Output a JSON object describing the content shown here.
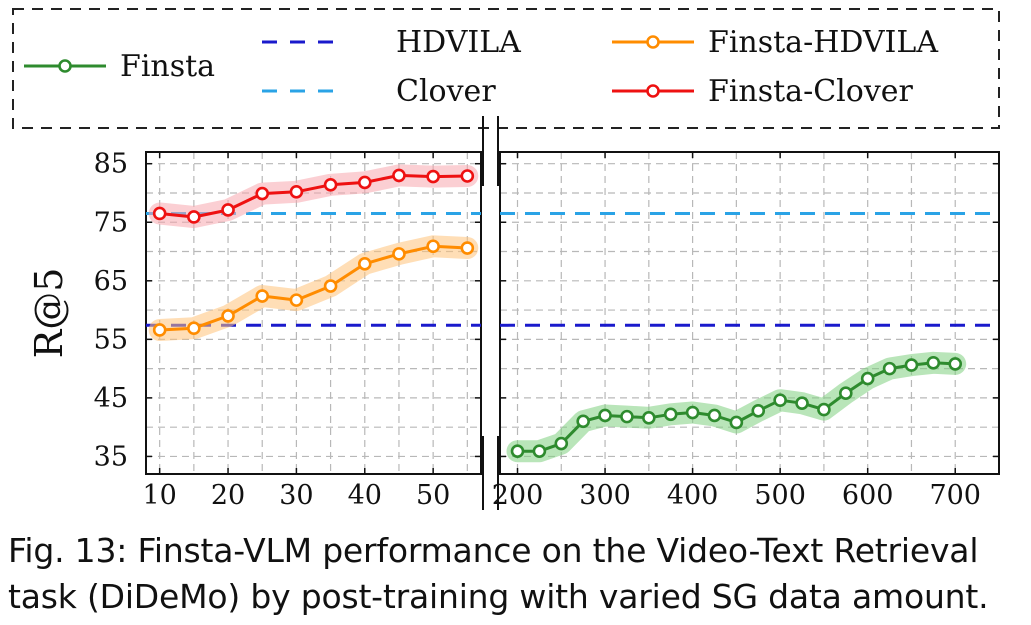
{
  "chart_data": {
    "type": "line",
    "ylabel": "R@5",
    "ylim": [
      32,
      87
    ],
    "yticks": [
      35,
      45,
      55,
      65,
      75,
      85
    ],
    "left_panel": {
      "xlim": [
        8,
        57
      ],
      "xticks": [
        10,
        20,
        30,
        40,
        50
      ],
      "minor_grid": [
        15,
        25,
        35,
        45,
        55
      ]
    },
    "right_panel": {
      "xlim": [
        180,
        750
      ],
      "xticks": [
        200,
        300,
        400,
        500,
        600,
        700
      ],
      "minor_grid": [
        250,
        350,
        450,
        550,
        650
      ]
    },
    "baselines": [
      {
        "name": "HDVILA",
        "value": 57.4,
        "color": "#1a1acc"
      },
      {
        "name": "Clover",
        "value": 76.5,
        "color": "#2aa3e6"
      }
    ],
    "series": [
      {
        "name": "Finsta",
        "panel": "right",
        "color": "#2e8b2e",
        "band_color": "#7fd07f",
        "x": [
          200,
          225,
          250,
          275,
          300,
          325,
          350,
          375,
          400,
          425,
          450,
          475,
          500,
          525,
          550,
          575,
          600,
          625,
          650,
          675,
          700
        ],
        "values": [
          35.9,
          35.9,
          37.2,
          41.0,
          42.0,
          41.8,
          41.6,
          42.2,
          42.5,
          42.0,
          40.8,
          42.8,
          44.6,
          44.1,
          43.0,
          45.8,
          48.3,
          50.0,
          50.6,
          51.0,
          50.8
        ]
      },
      {
        "name": "Finsta-HDVILA",
        "panel": "left",
        "color": "#ff8c00",
        "band_color": "#ffc27a",
        "x": [
          10,
          15,
          20,
          25,
          30,
          35,
          40,
          45,
          50,
          55
        ],
        "values": [
          56.6,
          56.9,
          59.0,
          62.4,
          61.7,
          64.1,
          67.9,
          69.6,
          70.9,
          70.6
        ]
      },
      {
        "name": "Finsta-Clover",
        "panel": "left",
        "color": "#ee1111",
        "band_color": "#f7a8ae",
        "x": [
          10,
          15,
          20,
          25,
          30,
          35,
          40,
          45,
          50,
          55
        ],
        "values": [
          76.5,
          75.9,
          77.1,
          79.9,
          80.2,
          81.4,
          81.8,
          83.0,
          82.8,
          82.9
        ]
      }
    ],
    "legend": {
      "placement": "top",
      "entries": [
        "Finsta",
        "HDVILA",
        "Finsta-HDVILA",
        "Clover",
        "Finsta-Clover"
      ]
    }
  },
  "caption": {
    "line1": "Fig. 13: Finsta-VLM performance on the Video-Text Retrieval",
    "line2": "task (DiDeMo) by post-training with varied SG data amount."
  }
}
